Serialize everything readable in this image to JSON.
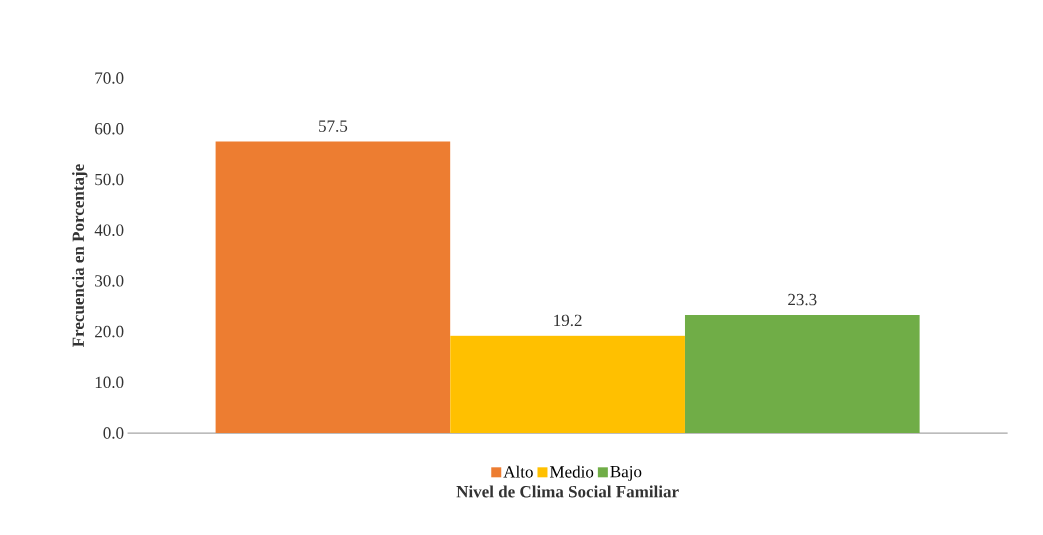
{
  "chart_data": {
    "type": "bar",
    "xlabel": "Nivel de Clima Social Familiar",
    "ylabel": "Frecuencia en Porcentaje",
    "categories": [
      null
    ],
    "series": [
      {
        "name": "Alto",
        "color": "#ed7d31",
        "values": [
          57.5
        ]
      },
      {
        "name": "Medio",
        "color": "#ffc000",
        "values": [
          19.2
        ]
      },
      {
        "name": "Bajo",
        "color": "#70ad47",
        "values": [
          23.3
        ]
      }
    ],
    "ylim": [
      0,
      70
    ],
    "yticks": [
      {
        "value": 0,
        "label": "0.0"
      },
      {
        "value": 10,
        "label": "10.0"
      },
      {
        "value": 20,
        "label": "20.0"
      },
      {
        "value": 30,
        "label": "30.0"
      },
      {
        "value": 40,
        "label": "40.0"
      },
      {
        "value": 50,
        "label": "50.0"
      },
      {
        "value": 60,
        "label": "60.0"
      },
      {
        "value": 70,
        "label": "70.0"
      }
    ],
    "data_labels": true,
    "legend": "bottom"
  }
}
